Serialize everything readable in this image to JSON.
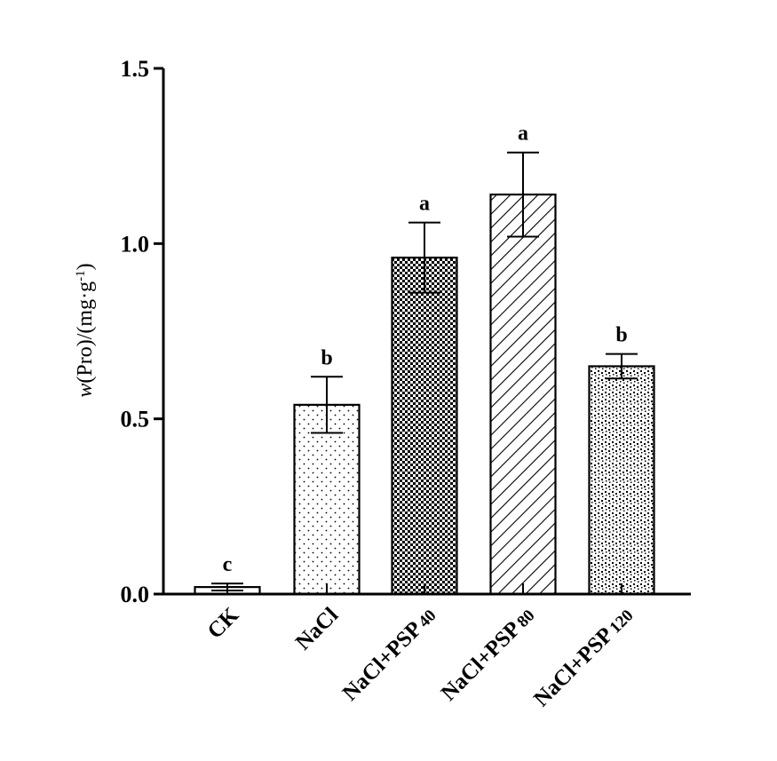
{
  "chart_data": {
    "type": "bar",
    "ylabel": {
      "var": "w",
      "rest": "(Pro)/(mg·g",
      "sup": "-1",
      "close": ")"
    },
    "ylim": [
      0,
      1.5
    ],
    "yticks": [
      "0.0",
      "0.5",
      "1.0",
      "1.5"
    ],
    "categories": [
      {
        "base": "CK",
        "sub": ""
      },
      {
        "base": "NaCl",
        "sub": ""
      },
      {
        "base": "NaCl+PSP",
        "sub": "40"
      },
      {
        "base": "NaCl+PSP",
        "sub": "80"
      },
      {
        "base": "NaCl+PSP",
        "sub": "120"
      }
    ],
    "values": [
      0.02,
      0.54,
      0.96,
      1.14,
      0.65
    ],
    "errors": [
      0.01,
      0.08,
      0.1,
      0.12,
      0.035
    ],
    "significance": [
      "c",
      "b",
      "a",
      "a",
      "b"
    ],
    "patterns": [
      "plain",
      "dots",
      "checker",
      "diagonal",
      "speckle"
    ],
    "colors": {
      "ink": "#000000",
      "fill": "#ffffff"
    }
  }
}
